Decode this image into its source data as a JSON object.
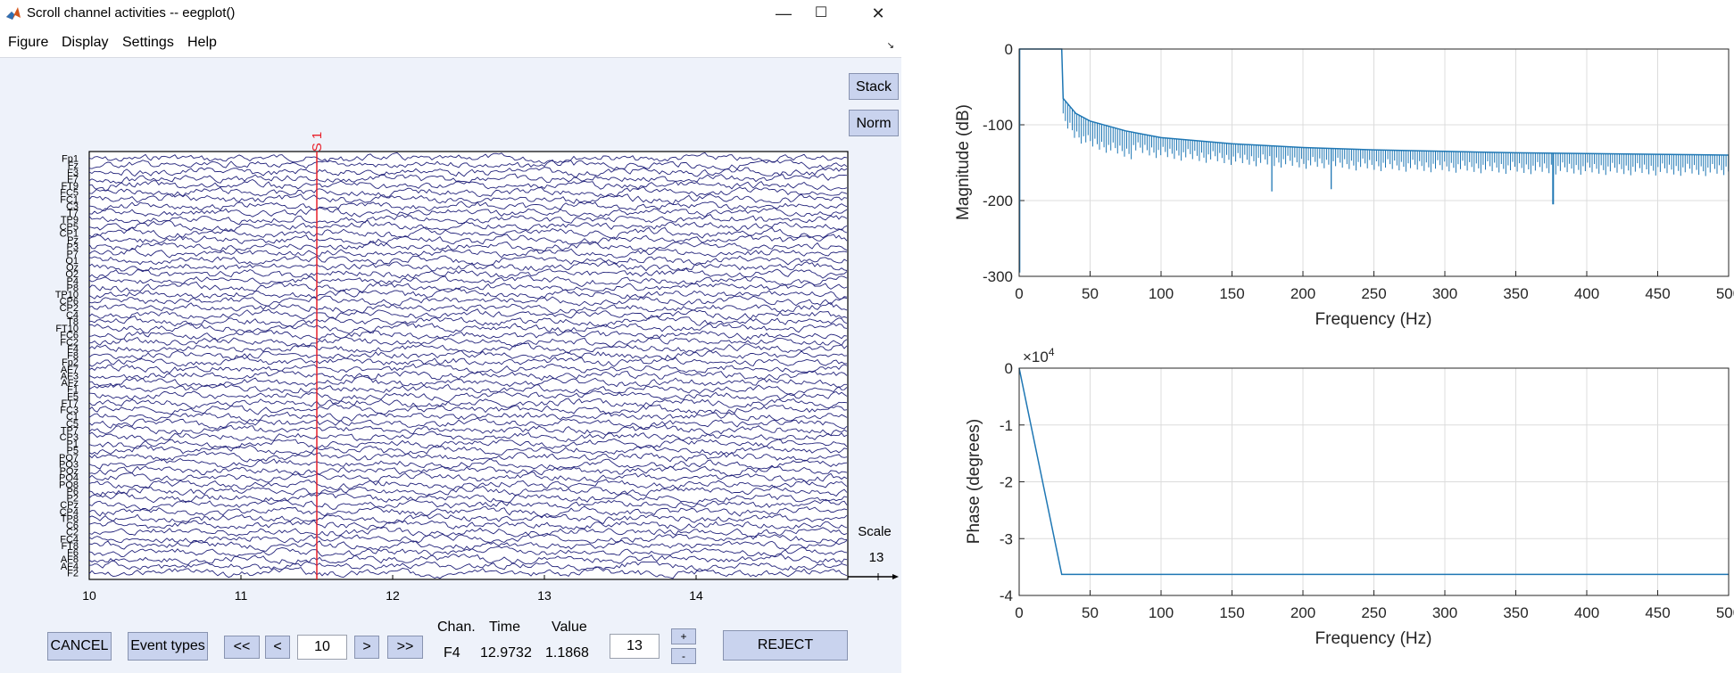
{
  "window": {
    "title": "Scroll channel activities -- eegplot()",
    "minimize_glyph": "—",
    "maximize_glyph": "☐",
    "close_glyph": "✕",
    "app_icon": "matlab-icon",
    "dock_glyph": "↘"
  },
  "menu": [
    "Figure",
    "Display",
    "Settings",
    "Help"
  ],
  "side_buttons": {
    "stack": "Stack",
    "norm": "Norm"
  },
  "eeg": {
    "channel_labels": [
      "Fp1",
      "Fz",
      "F3",
      "F7",
      "FT9",
      "FC5",
      "FC1",
      "C3",
      "T7",
      "TP9",
      "CP5",
      "CP1",
      "Pz",
      "P3",
      "P7",
      "O1",
      "Oz",
      "O2",
      "P4",
      "P8",
      "TP10",
      "CP6",
      "CP2",
      "C4",
      "T8",
      "FT10",
      "FC6",
      "FC2",
      "F4",
      "F8",
      "Fp2",
      "AF7",
      "AF3",
      "AFz",
      "F1",
      "F5",
      "FT7",
      "FC3",
      "C1",
      "C5",
      "TP7",
      "CP3",
      "P1",
      "P5",
      "PO7",
      "PO3",
      "POz",
      "PO4",
      "PO8",
      "P6",
      "P2",
      "CPz",
      "CP4",
      "TP8",
      "C6",
      "C2",
      "FC4",
      "FT8",
      "F6",
      "AF8",
      "AF4",
      "F2"
    ],
    "x_ticks": [
      "10",
      "11",
      "12",
      "13",
      "14"
    ],
    "x_range": [
      10,
      15
    ],
    "event_label": "S 1",
    "event_time": 11.5,
    "event_color": "#e8202a",
    "trace_color": "#22227a",
    "scale_label": "Scale",
    "scale_value": "13"
  },
  "controls": {
    "cancel": "CANCEL",
    "event_types": "Event types",
    "first": "<<",
    "prev": "<",
    "window_value": "10",
    "next": ">",
    "last": ">>",
    "chan_header": "Chan.",
    "time_header": "Time",
    "value_header": "Value",
    "chan": "F4",
    "time": "12.9732",
    "value": "1.1868",
    "scale_box": "13",
    "plus": "+",
    "minus": "-",
    "reject": "REJECT"
  },
  "chart_data": [
    {
      "type": "line",
      "title": "",
      "xlabel": "Frequency (Hz)",
      "ylabel": "Magnitude (dB)",
      "xlim": [
        0,
        500
      ],
      "ylim": [
        -300,
        0
      ],
      "x_ticks": [
        "0",
        "50",
        "100",
        "150",
        "200",
        "250",
        "300",
        "350",
        "400",
        "450",
        "500"
      ],
      "y_ticks": [
        "0",
        "-100",
        "-200",
        "-300"
      ],
      "grid": true,
      "series_color": "#1f77b4",
      "x": [
        0,
        30,
        31,
        40,
        50,
        75,
        100,
        150,
        200,
        250,
        300,
        350,
        400,
        450,
        500
      ],
      "y": [
        0,
        0,
        -65,
        -85,
        -95,
        -108,
        -117,
        -125,
        -130,
        -133,
        -135,
        -137,
        -138,
        -139,
        -140
      ],
      "notches": [
        {
          "x": 178,
          "y": -188
        },
        {
          "x": 220,
          "y": -185
        },
        {
          "x": 376,
          "y": -205
        }
      ]
    },
    {
      "type": "line",
      "title": "",
      "xlabel": "Frequency (Hz)",
      "ylabel": "Phase (degrees)",
      "xlim": [
        0,
        500
      ],
      "ylim": [
        -4,
        0
      ],
      "y_multiplier": "×10",
      "y_multiplier_exp": "4",
      "x_ticks": [
        "0",
        "50",
        "100",
        "150",
        "200",
        "250",
        "300",
        "350",
        "400",
        "450",
        "500"
      ],
      "y_ticks": [
        "0",
        "-1",
        "-2",
        "-3",
        "-4"
      ],
      "grid": true,
      "series_color": "#1f77b4",
      "x": [
        0,
        30,
        500
      ],
      "y": [
        0,
        -3.63,
        -3.63
      ]
    }
  ]
}
